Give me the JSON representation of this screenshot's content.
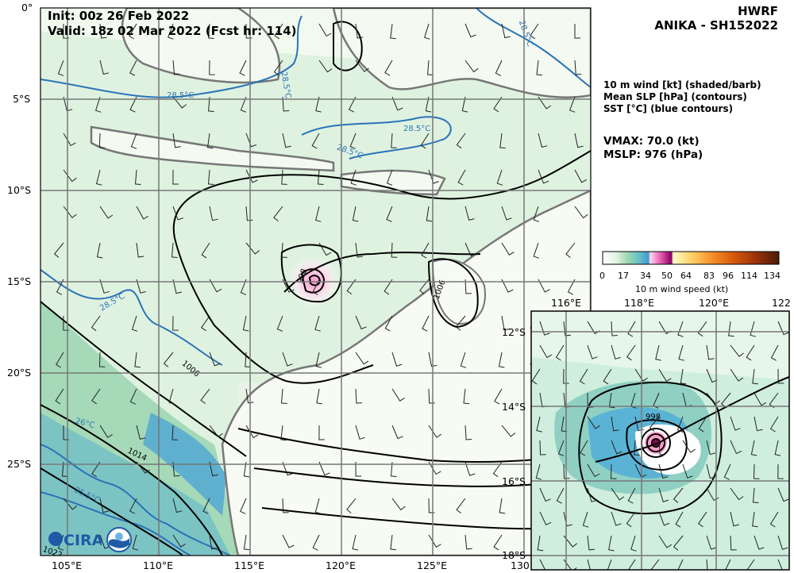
{
  "header": {
    "init": "Init:   00z 26 Feb 2022",
    "valid": "Valid: 18z 02 Mar 2022 (Fcst hr: 114)",
    "model": "HWRF",
    "storm": "ANIKA - SH152022"
  },
  "legend_text": {
    "line1": "10 m wind [kt] (shaded/barb)",
    "line2": "Mean SLP [hPa] (contours)",
    "line3": "SST [°C] (blue contours)"
  },
  "stats": {
    "vmax": "VMAX:  70.0 (kt)",
    "mslp": "MSLP:  976 (hPa)"
  },
  "colorbar": {
    "ticks": [
      "0",
      "17",
      "34",
      "50",
      "64",
      "83",
      "96",
      "114",
      "134"
    ],
    "label": "10 m wind speed (kt)"
  },
  "main_map": {
    "lat_labels": [
      "0°",
      "5°S",
      "10°S",
      "15°S",
      "20°S",
      "25°S"
    ],
    "lon_labels": [
      "105°E",
      "110°E",
      "115°E",
      "120°E",
      "125°E",
      "130"
    ],
    "contour_labels": [
      "28.5°C",
      "28.5°C",
      "28.5°C",
      "28.5°C",
      "28.5°C",
      "28.5°C",
      "26°C",
      "25.5°C",
      "998",
      "1006",
      "1006",
      "1014",
      "1022"
    ]
  },
  "inset_map": {
    "lon_labels": [
      "116°E",
      "118°E",
      "120°E",
      "122"
    ],
    "lat_labels": [
      "12°S",
      "14°S",
      "16°S",
      "18°S"
    ],
    "contour_labels": [
      "998"
    ]
  },
  "logos": {
    "cira": "CIRA"
  }
}
